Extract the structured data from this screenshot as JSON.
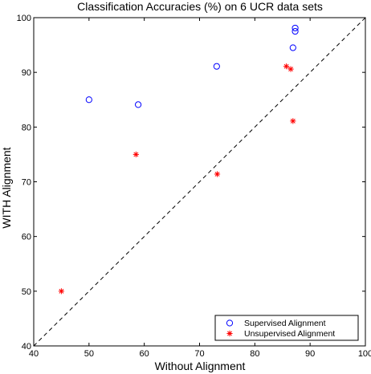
{
  "chart_data": {
    "type": "scatter",
    "title": "Classification Accuracies (%) on 6 UCR data sets",
    "xlabel": "Without Alignment",
    "ylabel": "WITH Alignment",
    "xlim": [
      40,
      100
    ],
    "ylim": [
      40,
      100
    ],
    "xticks": [
      40,
      50,
      60,
      70,
      80,
      90,
      100
    ],
    "yticks": [
      40,
      50,
      60,
      70,
      80,
      90,
      100
    ],
    "grid": false,
    "legend_position": "bottom-right",
    "reference_line": {
      "style": "dashed",
      "from": [
        40,
        40
      ],
      "to": [
        100,
        100
      ]
    },
    "series": [
      {
        "name": "Supervised Alignment",
        "marker": "circle",
        "color": "#0000ff",
        "points": [
          {
            "x": 50.0,
            "y": 85.0
          },
          {
            "x": 58.9,
            "y": 84.1
          },
          {
            "x": 73.1,
            "y": 91.1
          },
          {
            "x": 86.9,
            "y": 94.5
          },
          {
            "x": 87.3,
            "y": 97.5
          },
          {
            "x": 87.3,
            "y": 98.1
          }
        ]
      },
      {
        "name": "Unsupervised Alignment",
        "marker": "asterisk",
        "color": "#ff0000",
        "points": [
          {
            "x": 45.0,
            "y": 50.0
          },
          {
            "x": 58.5,
            "y": 75.0
          },
          {
            "x": 73.2,
            "y": 71.4
          },
          {
            "x": 85.7,
            "y": 91.1
          },
          {
            "x": 86.5,
            "y": 90.6
          },
          {
            "x": 86.9,
            "y": 81.1
          }
        ]
      }
    ]
  }
}
